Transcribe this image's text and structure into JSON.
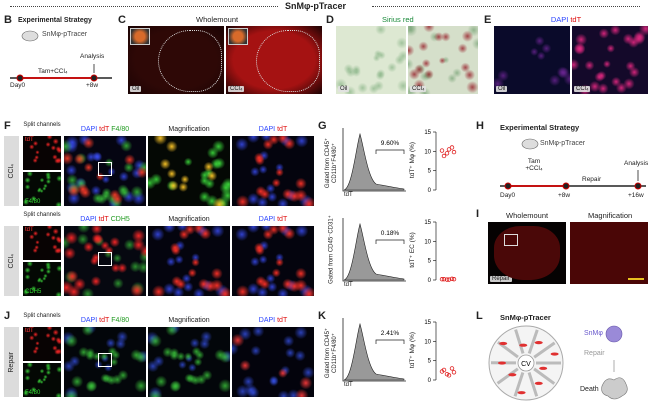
{
  "title": "SnMφ-pTracer",
  "panel_b": {
    "label": "B",
    "title": "Experimental Strategy",
    "mouse": "SnMφ-pTracer",
    "treatment": "Tam+CCl₄",
    "analysis": "Analysis",
    "start": "Day0",
    "end": "+8w"
  },
  "panel_c": {
    "label": "C",
    "title": "Wholemount",
    "images": [
      "Oil",
      "CCl₄"
    ]
  },
  "panel_d": {
    "label": "D",
    "title": "Sirius red",
    "images": [
      "Oil",
      "CCl₄"
    ]
  },
  "panel_e": {
    "label": "E",
    "title": [
      "DAPI",
      "tdT"
    ],
    "images": [
      "Oil",
      "CCl₄"
    ]
  },
  "panel_f": {
    "label": "F",
    "rows": [
      {
        "condition": "CCl₄",
        "split": "Split channels",
        "channels": [
          "tdT",
          "F4/80"
        ],
        "merge": [
          "DAPI",
          "tdT",
          "F4/80"
        ],
        "magnification": "Magnification",
        "zoom": [
          "DAPI",
          "tdT"
        ]
      },
      {
        "condition": "CCl₄",
        "split": "Split channels",
        "channels": [
          "tdT",
          "CDH5"
        ],
        "merge": [
          "DAPI",
          "tdT",
          "CDH5"
        ],
        "magnification": "Magnification",
        "zoom": [
          "DAPI",
          "tdT"
        ]
      }
    ]
  },
  "panel_g": {
    "label": "G",
    "plots": [
      {
        "gate": "Gated from CD45⁺ CD11b⁺F4/80⁺",
        "percent": "9.60%",
        "x_axis": "tdT",
        "y_axis": "tdT⁺ Mφ (%)",
        "ylim": [
          0,
          15
        ],
        "yticks": [
          0,
          5,
          10,
          15
        ],
        "values": [
          10.2,
          9.5,
          11,
          8.8,
          10.5,
          9.8
        ]
      },
      {
        "gate": "Gated from CD45⁻CD31⁺",
        "percent": "0.18%",
        "x_axis": "tdT",
        "y_axis": "tdT⁺ EC (%)",
        "ylim": [
          0,
          15
        ],
        "yticks": [
          0,
          5,
          10,
          15
        ],
        "values": [
          0.2,
          0.1,
          0.3,
          0.2,
          0.1,
          0.2
        ]
      }
    ]
  },
  "panel_h": {
    "label": "H",
    "title": "Experimental Strategy",
    "mouse": "SnMφ-pTracer",
    "treatment": "Tam +CCl₄",
    "analysis": "Analysis",
    "repair": "Repair",
    "timepoints": [
      "Day0",
      "+8w",
      "+16w"
    ]
  },
  "panel_i": {
    "label": "I",
    "titles": [
      "Wholemount",
      "Magnification"
    ],
    "condition": "Repair"
  },
  "panel_j": {
    "label": "J",
    "row": {
      "condition": "Repair",
      "split": "Split channels",
      "channels": [
        "tdT",
        "F4/80"
      ],
      "merge": [
        "DAPI",
        "tdT",
        "F4/80"
      ],
      "magnification": "Magnification",
      "zoom": [
        "DAPI",
        "tdT"
      ]
    }
  },
  "panel_k": {
    "label": "K",
    "plot": {
      "gate": "Gated from CD45⁺ CD11b⁺F4/80⁺",
      "percent": "2.41%",
      "x_axis": "tdT",
      "y_axis": "tdT⁺ Mφ (%)",
      "ylim": [
        0,
        15
      ],
      "yticks": [
        0,
        5,
        10,
        15
      ],
      "values": [
        2.2,
        1.5,
        3.0,
        2.6,
        1.2,
        2.0
      ]
    }
  },
  "panel_l": {
    "label": "L",
    "title": "SnMφ-pTracer",
    "vessel": "CV",
    "cell": "SnMφ",
    "repair": "Repair",
    "death": "Death"
  }
}
